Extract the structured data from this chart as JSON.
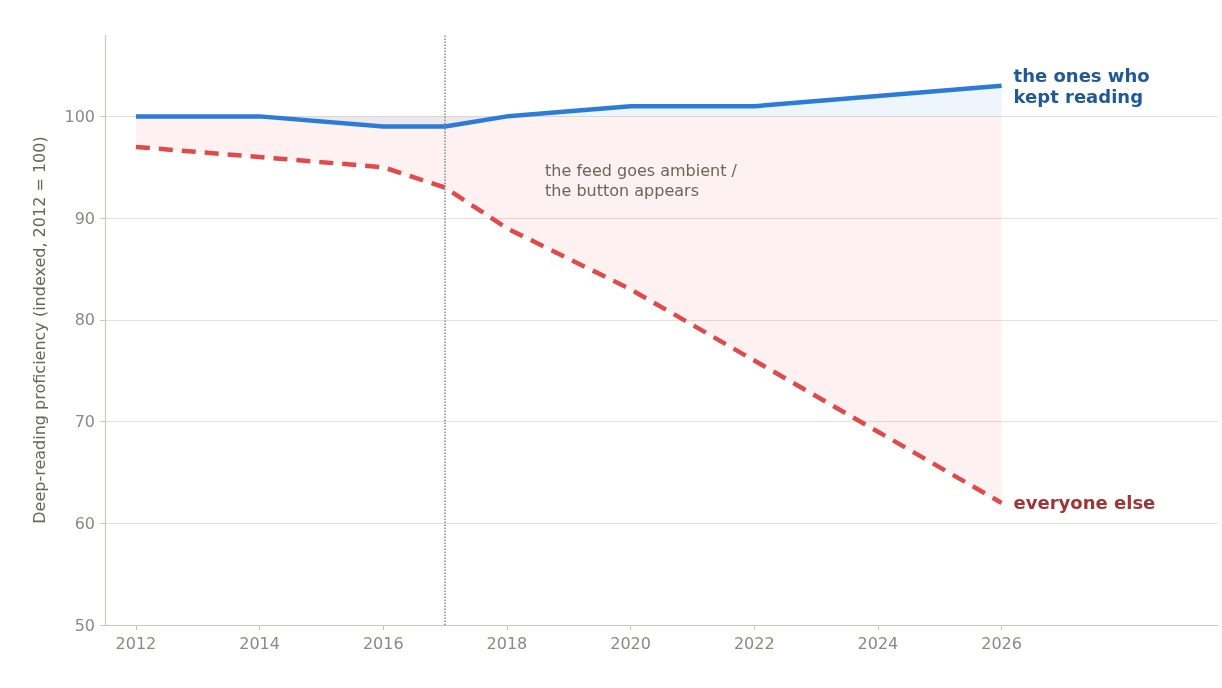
{
  "chart_data": {
    "type": "line",
    "ylabel": "Deep-reading proficiency (indexed, 2012 = 100)",
    "x": [
      2012,
      2014,
      2016,
      2017,
      2018,
      2020,
      2022,
      2024,
      2026
    ],
    "series": [
      {
        "name": "the ones who\nkept reading",
        "color": "#2b7bd9",
        "line_style": "solid",
        "values": [
          100,
          100,
          99,
          99,
          100,
          101,
          101,
          102,
          103
        ],
        "lower": [
          100,
          100,
          100,
          100,
          100,
          100,
          100,
          100,
          100
        ],
        "upper": [
          100,
          100,
          99,
          99,
          100,
          101,
          101,
          102,
          103
        ]
      },
      {
        "name": "everyone else",
        "color": "#e04a4a",
        "line_style": "dashed",
        "values": [
          97,
          96,
          95,
          93,
          89,
          83,
          76,
          69,
          62
        ],
        "lower": [
          97,
          96,
          95,
          93,
          89,
          83,
          76,
          69,
          62
        ],
        "upper": [
          100,
          100,
          100,
          100,
          100,
          100,
          100,
          100,
          100
        ]
      }
    ],
    "xlim": [
      2011.5,
      2029.5
    ],
    "xticks": [
      2012,
      2014,
      2016,
      2018,
      2020,
      2022,
      2024,
      2026
    ],
    "ylim": [
      50,
      108
    ],
    "yticks": [
      50,
      60,
      70,
      80,
      90,
      100
    ],
    "ref_lines": [
      {
        "axis": "x",
        "value": 2017,
        "label": "the feed goes ambient /\nthe button appears",
        "line_style": "dotted",
        "color": "#888888"
      }
    ],
    "grid": "y",
    "legend": false,
    "marker": "none"
  }
}
